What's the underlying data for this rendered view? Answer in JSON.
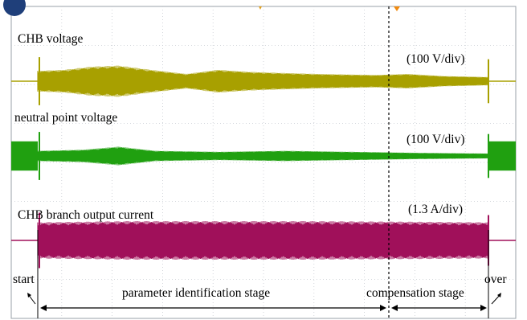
{
  "chart_data": {
    "type": "line",
    "time_markers": {
      "start": "start",
      "over": "over",
      "stages": [
        {
          "name": "parameter identification stage"
        },
        {
          "name": "compensation stage"
        }
      ]
    },
    "series": [
      {
        "name": "CHB voltage",
        "scale": "(100 V/div)",
        "color": "#a8a000",
        "pre_level": 0,
        "envelope": [
          {
            "t": 0.0,
            "amp": 0.5
          },
          {
            "t": 0.06,
            "amp": 0.55
          },
          {
            "t": 0.12,
            "amp": 0.7
          },
          {
            "t": 0.18,
            "amp": 0.75
          },
          {
            "t": 0.25,
            "amp": 0.55
          },
          {
            "t": 0.33,
            "amp": 0.35
          },
          {
            "t": 0.4,
            "amp": 0.55
          },
          {
            "t": 0.47,
            "amp": 0.45
          },
          {
            "t": 0.54,
            "amp": 0.4
          },
          {
            "t": 0.62,
            "amp": 0.35
          },
          {
            "t": 0.75,
            "amp": 0.3
          },
          {
            "t": 0.82,
            "amp": 0.35
          },
          {
            "t": 0.9,
            "amp": 0.25
          },
          {
            "t": 1.0,
            "amp": 0.2
          }
        ]
      },
      {
        "name": "neutral point voltage",
        "scale": "(100 V/div)",
        "color": "#20a010",
        "pre_level": 0.7,
        "envelope": [
          {
            "t": 0.0,
            "amp": 0.25
          },
          {
            "t": 0.1,
            "amp": 0.3
          },
          {
            "t": 0.18,
            "amp": 0.45
          },
          {
            "t": 0.26,
            "amp": 0.25
          },
          {
            "t": 0.4,
            "amp": 0.2
          },
          {
            "t": 0.55,
            "amp": 0.25
          },
          {
            "t": 0.7,
            "amp": 0.2
          },
          {
            "t": 0.85,
            "amp": 0.15
          },
          {
            "t": 1.0,
            "amp": 0.12
          }
        ]
      },
      {
        "name": "CHB branch output current",
        "scale": "(1.3 A/div)",
        "color": "#a0105a",
        "pre_level": 0,
        "envelope": [
          {
            "t": 0.0,
            "amp": 0.75
          },
          {
            "t": 0.2,
            "amp": 0.8
          },
          {
            "t": 0.4,
            "amp": 0.8
          },
          {
            "t": 0.6,
            "amp": 0.8
          },
          {
            "t": 0.8,
            "amp": 0.78
          },
          {
            "t": 1.0,
            "amp": 0.75
          }
        ]
      }
    ]
  }
}
